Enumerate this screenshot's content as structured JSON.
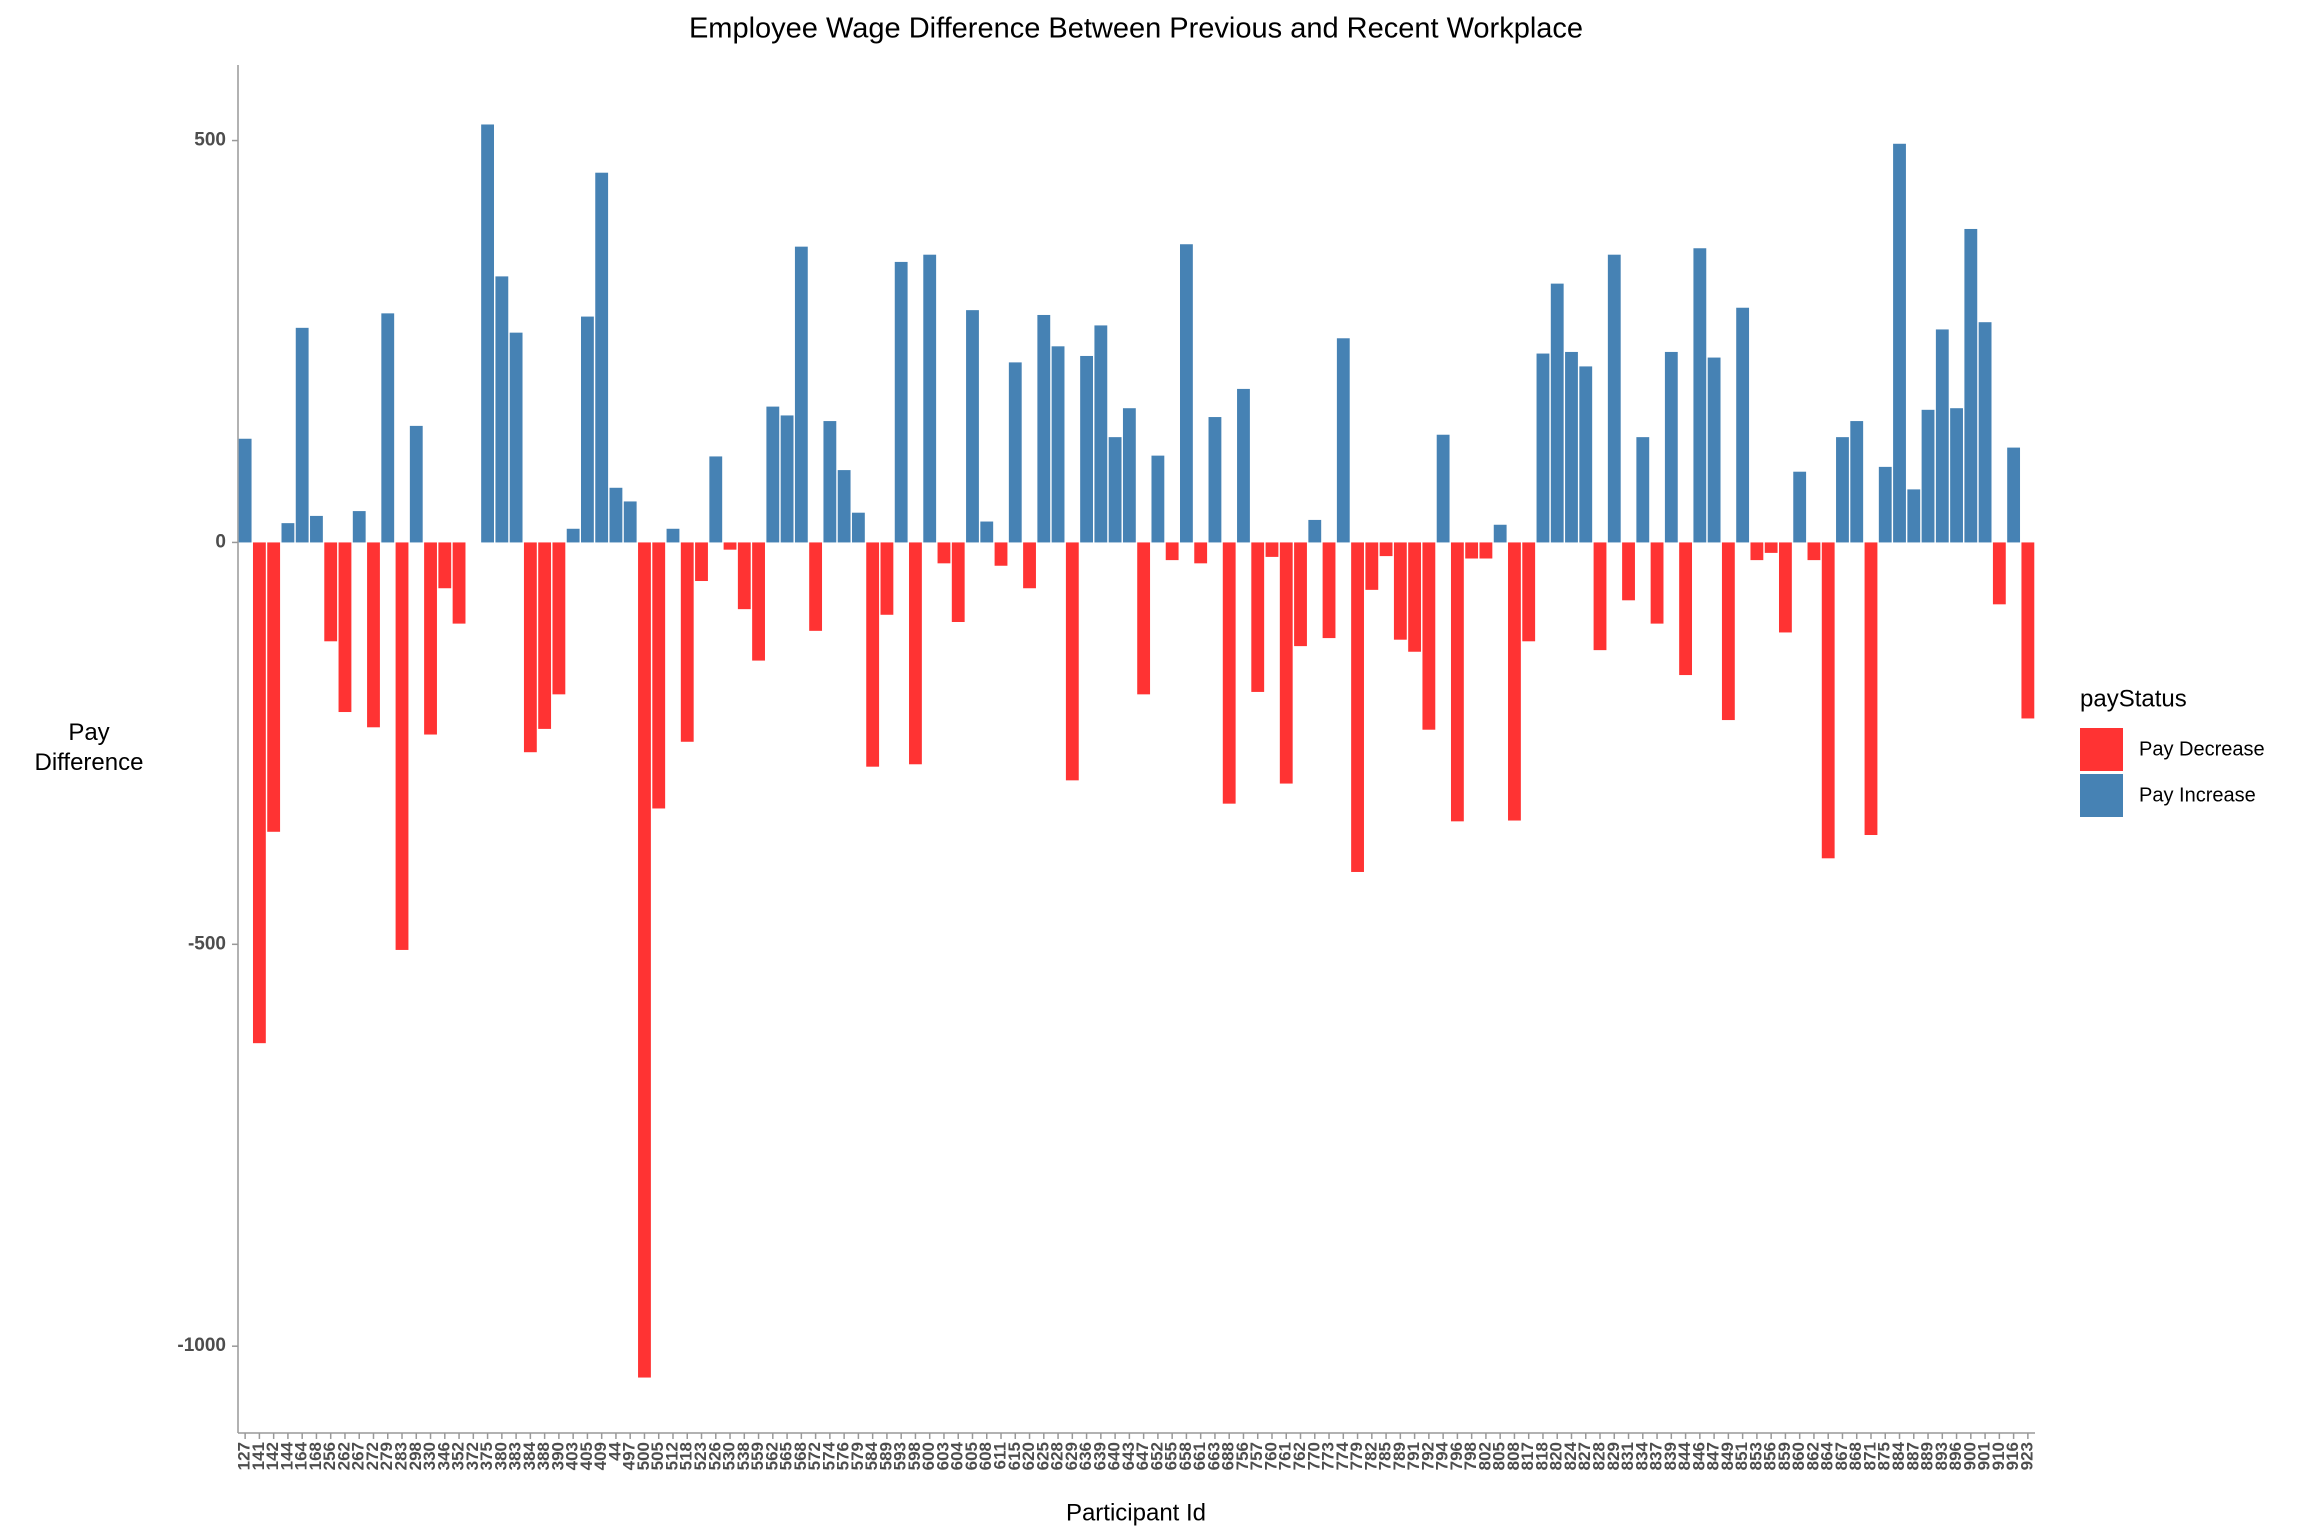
{
  "chart_data": {
    "type": "bar",
    "title": "Employee Wage Difference Between Previous and Recent Workplace",
    "x_label": "Participant Id",
    "y_label": "Pay Difference",
    "legend_title": "payStatus",
    "legend_position": "right",
    "categories": [
      "127",
      "141",
      "142",
      "144",
      "164",
      "168",
      "256",
      "262",
      "267",
      "272",
      "279",
      "283",
      "298",
      "330",
      "346",
      "352",
      "372",
      "375",
      "380",
      "383",
      "384",
      "388",
      "390",
      "403",
      "405",
      "409",
      "44",
      "497",
      "500",
      "505",
      "512",
      "518",
      "523",
      "526",
      "530",
      "538",
      "559",
      "562",
      "565",
      "568",
      "572",
      "574",
      "576",
      "579",
      "584",
      "589",
      "593",
      "598",
      "600",
      "603",
      "604",
      "605",
      "608",
      "611",
      "615",
      "620",
      "625",
      "628",
      "629",
      "636",
      "639",
      "640",
      "643",
      "647",
      "652",
      "655",
      "658",
      "661",
      "663",
      "688",
      "756",
      "757",
      "760",
      "761",
      "762",
      "770",
      "773",
      "774",
      "779",
      "782",
      "785",
      "789",
      "791",
      "792",
      "794",
      "796",
      "798",
      "802",
      "805",
      "808",
      "817",
      "818",
      "820",
      "824",
      "827",
      "828",
      "829",
      "831",
      "834",
      "837",
      "839",
      "844",
      "846",
      "847",
      "849",
      "851",
      "853",
      "856",
      "859",
      "860",
      "862",
      "864",
      "867",
      "868",
      "871",
      "875",
      "884",
      "887",
      "889",
      "893",
      "896",
      "900",
      "901",
      "910",
      "916",
      "923"
    ],
    "series": [
      {
        "name": "Pay Decrease",
        "color": "#ff3333",
        "values": [
          null,
          -623,
          -360,
          null,
          null,
          null,
          -123,
          -211,
          null,
          -230,
          null,
          -507,
          null,
          -239,
          -57,
          -101,
          null,
          null,
          null,
          null,
          -261,
          -232,
          -189,
          null,
          null,
          null,
          null,
          null,
          -1039,
          -331,
          null,
          -248,
          -48,
          null,
          -9,
          -83,
          -147,
          null,
          null,
          null,
          -110,
          null,
          null,
          null,
          -279,
          -90,
          null,
          -276,
          null,
          -26,
          -99,
          null,
          null,
          -29,
          null,
          -57,
          null,
          null,
          -296,
          null,
          null,
          null,
          null,
          -189,
          null,
          -22,
          null,
          -26,
          null,
          -325,
          null,
          -186,
          -18,
          -300,
          -129,
          null,
          -119,
          null,
          -410,
          -59,
          -17,
          -121,
          -136,
          -233,
          null,
          -347,
          -20,
          -20,
          null,
          -346,
          -123,
          null,
          null,
          null,
          null,
          -134,
          null,
          -72,
          null,
          -101,
          null,
          -165,
          null,
          null,
          -221,
          null,
          -22,
          -13,
          -112,
          null,
          -22,
          -393,
          null,
          null,
          -364,
          null,
          null,
          null,
          null,
          null,
          null,
          null,
          null,
          -77,
          null,
          -219
        ]
      },
      {
        "name": "Pay Increase",
        "color": "#4682b4",
        "values": [
          129,
          null,
          null,
          24,
          267,
          33,
          null,
          null,
          39,
          null,
          285,
          null,
          145,
          null,
          null,
          null,
          0,
          520,
          331,
          261,
          null,
          null,
          null,
          17,
          281,
          460,
          68,
          51,
          null,
          null,
          17,
          null,
          null,
          107,
          null,
          null,
          null,
          169,
          158,
          368,
          null,
          151,
          90,
          37,
          null,
          null,
          349,
          null,
          358,
          null,
          null,
          289,
          26,
          null,
          224,
          null,
          283,
          244,
          null,
          232,
          270,
          131,
          167,
          null,
          108,
          null,
          371,
          null,
          156,
          null,
          191,
          null,
          null,
          null,
          null,
          28,
          null,
          254,
          null,
          null,
          null,
          null,
          null,
          null,
          134,
          null,
          null,
          null,
          22,
          null,
          null,
          235,
          322,
          237,
          219,
          null,
          358,
          null,
          131,
          null,
          237,
          null,
          366,
          230,
          null,
          292,
          null,
          null,
          null,
          88,
          null,
          null,
          131,
          151,
          null,
          94,
          496,
          66,
          165,
          265,
          167,
          390,
          274,
          null,
          118,
          null
        ]
      }
    ],
    "ylim": [
      -1108,
      594
    ],
    "yticks": [
      -1000,
      -500,
      0,
      500
    ],
    "grid": false
  }
}
